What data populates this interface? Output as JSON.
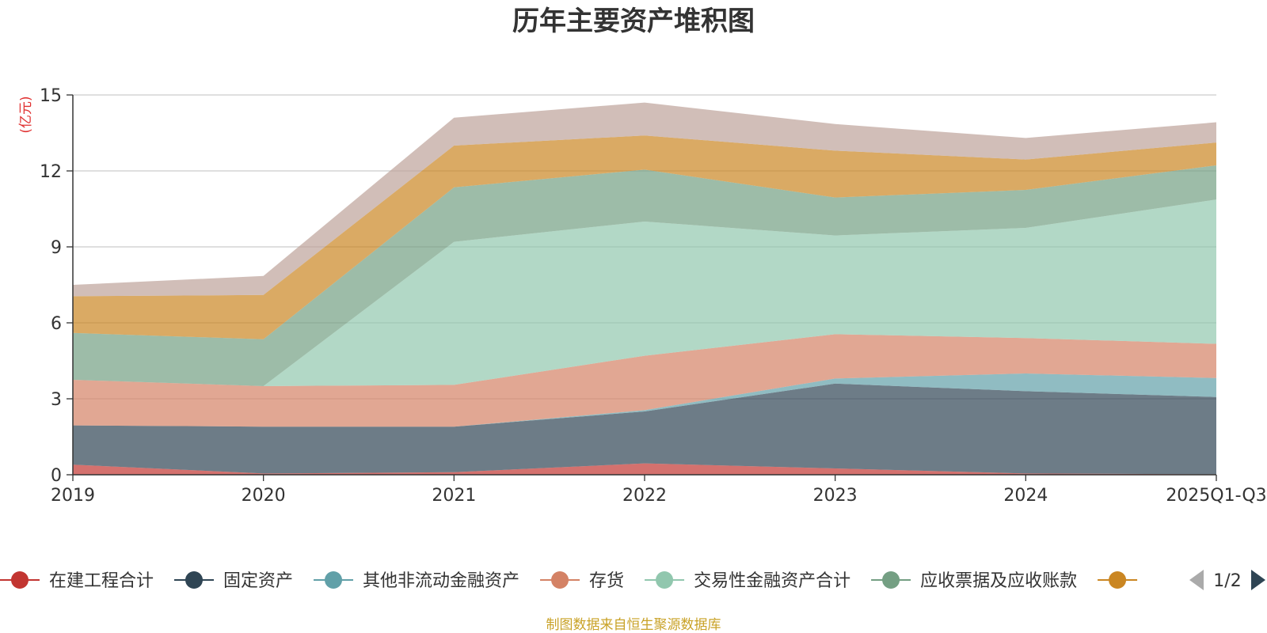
{
  "chart_data": {
    "type": "area",
    "stacked": true,
    "title": "历年主要资产堆积图",
    "ylabel": "(亿元)",
    "xlabel": "",
    "categories": [
      "2019",
      "2020",
      "2021",
      "2022",
      "2023",
      "2024",
      "2025Q1-Q3"
    ],
    "ylim": [
      0,
      15
    ],
    "yticks": [
      0,
      3,
      6,
      9,
      12,
      15
    ],
    "grid": true,
    "series": [
      {
        "name": "在建工程合计",
        "color": "#c23531",
        "values": [
          0.4,
          0.05,
          0.1,
          0.45,
          0.25,
          0.05,
          0.02
        ]
      },
      {
        "name": "固定资产",
        "color": "#2f4554",
        "values": [
          1.55,
          1.85,
          1.8,
          2.05,
          3.35,
          3.25,
          3.05
        ]
      },
      {
        "name": "其他非流动金融资产",
        "color": "#61a0a8",
        "values": [
          0,
          0,
          0,
          0.05,
          0.2,
          0.7,
          0.75
        ]
      },
      {
        "name": "存货",
        "color": "#d48265",
        "values": [
          1.8,
          1.6,
          1.65,
          2.15,
          1.75,
          1.4,
          1.35
        ]
      },
      {
        "name": "交易性金融资产合计",
        "color": "#91c7ae",
        "values": [
          0,
          0,
          5.65,
          5.3,
          3.9,
          4.35,
          5.7
        ]
      },
      {
        "name": "应收票据及应收账款",
        "color": "#749f83",
        "values": [
          1.85,
          1.85,
          2.15,
          2.05,
          1.5,
          1.5,
          1.35
        ]
      },
      {
        "name": "",
        "color": "#ca8622",
        "values": [
          1.45,
          1.75,
          1.65,
          1.35,
          1.85,
          1.2,
          0.9
        ]
      },
      {
        "name": "",
        "color": "#bda29a",
        "values": [
          0.45,
          0.75,
          1.1,
          1.3,
          1.05,
          0.85,
          0.8
        ]
      }
    ],
    "legend_position": "bottom",
    "legend_page": "1/2",
    "source_note": "制图数据来自恒生聚源数据库"
  }
}
